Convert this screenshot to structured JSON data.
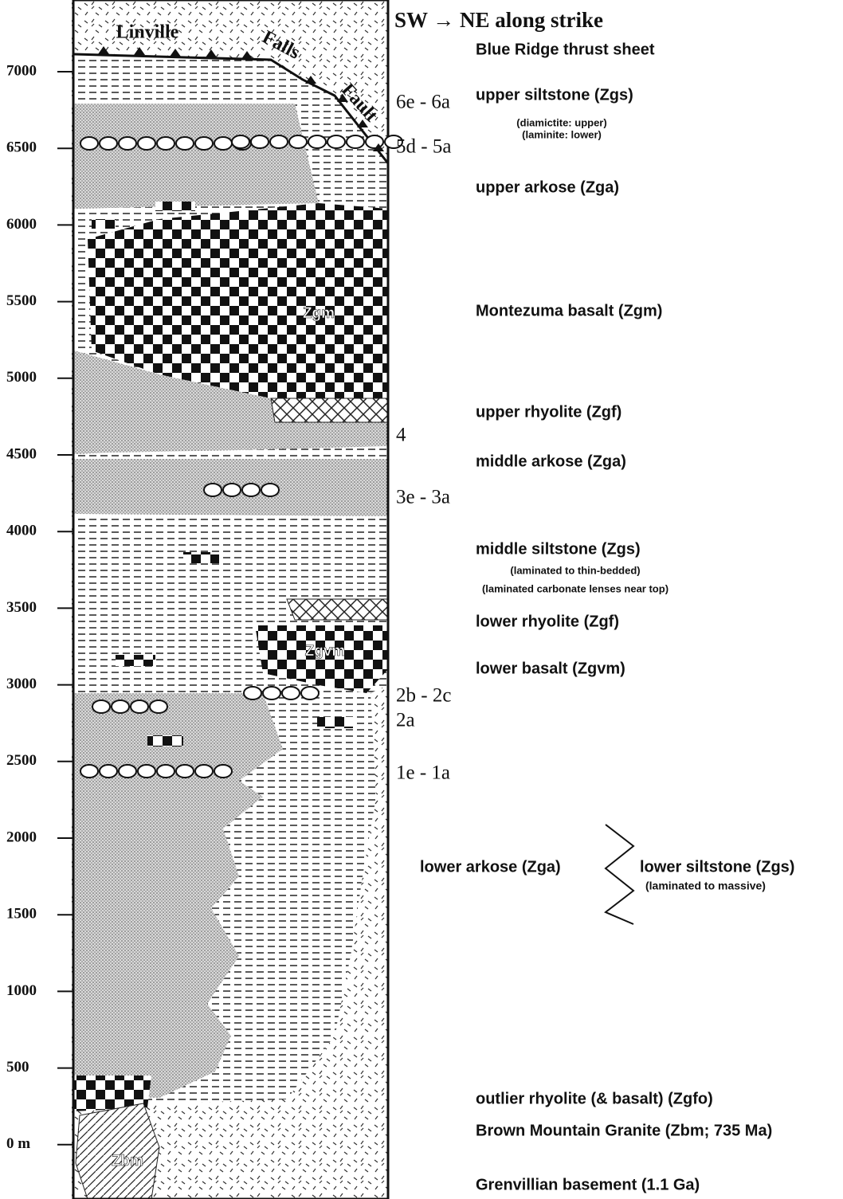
{
  "header": {
    "title": "SW → NE along strike"
  },
  "depth_axis": {
    "ticks": [
      "7000",
      "6500",
      "6000",
      "5500",
      "5000",
      "4500",
      "4000",
      "3500",
      "3000",
      "2500",
      "2000",
      "1500",
      "1000",
      "500",
      "0 m"
    ]
  },
  "fault_label": {
    "words": [
      "Linville",
      "Falls",
      "Fault"
    ]
  },
  "column_labels": [
    "Zgm",
    "Zgvm",
    "Zbm"
  ],
  "sample_labels": [
    "6e - 6a",
    "5d - 5a",
    "4",
    "3e - 3a",
    "2b - 2c",
    "2a",
    "1e - 1a"
  ],
  "units": [
    {
      "name": "Blue Ridge thrust sheet"
    },
    {
      "name": "upper siltstone (Zgs)",
      "notes": [
        "(diamictite: upper)",
        "(laminite:  lower)"
      ]
    },
    {
      "name": "upper arkose (Zga)"
    },
    {
      "name": "Montezuma basalt (Zgm)"
    },
    {
      "name": "upper rhyolite (Zgf)"
    },
    {
      "name": "middle arkose (Zga)"
    },
    {
      "name": "middle siltstone (Zgs)",
      "notes": [
        "(laminated to thin-bedded)",
        "(laminated carbonate lenses near top)"
      ]
    },
    {
      "name": "lower rhyolite (Zgf)"
    },
    {
      "name": "lower basalt (Zgvm)"
    },
    {
      "name": "outlier rhyolite (& basalt) (Zgfo)"
    },
    {
      "name": "Brown Mountain Granite (Zbm; 735 Ma)"
    },
    {
      "name": "Grenvillian  basement (1.1 Ga)"
    }
  ],
  "lower_units": {
    "left": "lower arkose (Zga)",
    "right": "lower siltstone (Zgs)",
    "note": "(laminated to massive)"
  }
}
